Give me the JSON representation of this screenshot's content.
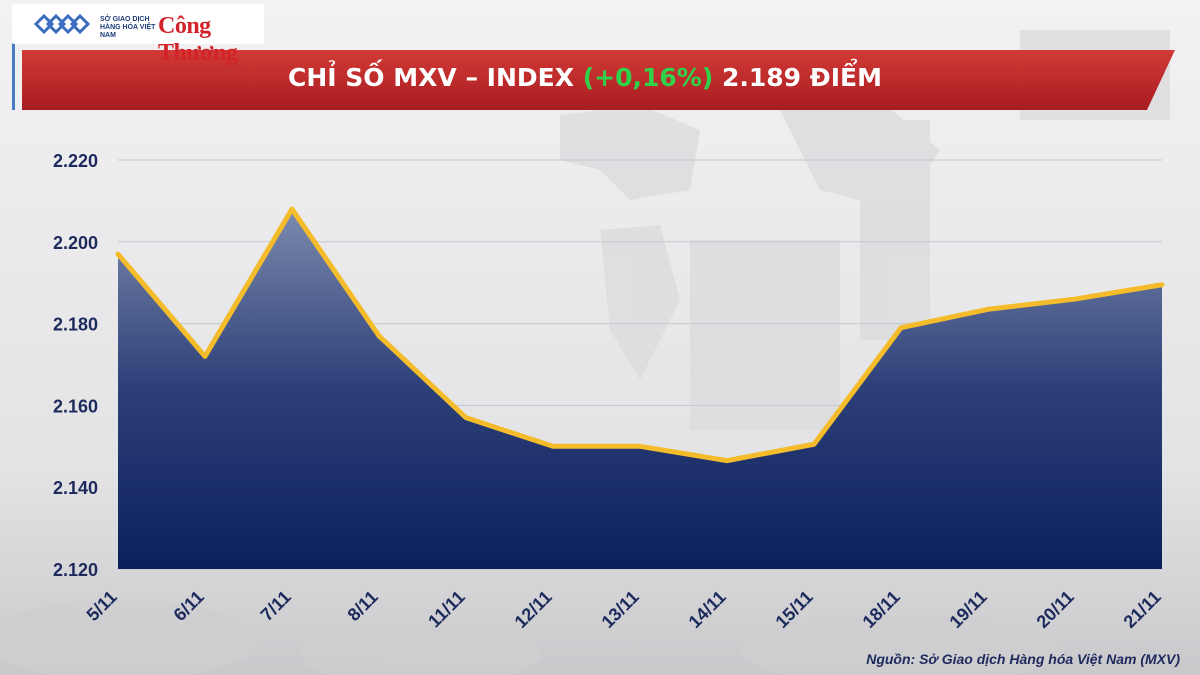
{
  "logos": {
    "mxv_text": "SỞ GIAO DỊCH HÀNG HÓA VIỆT NAM",
    "congthuong_text": "Công Thương"
  },
  "header": {
    "title_prefix": "CHỈ SỐ MXV – INDEX",
    "title_change": "(+0,16%)",
    "title_value": "2.189 ĐIỂM"
  },
  "source": "Nguồn: Sở Giao dịch Hàng hóa Việt Nam (MXV)",
  "colors": {
    "banner": "#c22a2b",
    "line": "#f4bc2a",
    "area_top": "#7b8aad",
    "area_bottom": "#0b1f5c",
    "change_text": "#2fd24b",
    "axis_text": "#1d2a5c"
  },
  "chart_data": {
    "type": "area",
    "title": "CHỈ SỐ MXV – INDEX (+0,16%) 2.189 ĐIỂM",
    "categories": [
      "5/11",
      "6/11",
      "7/11",
      "8/11",
      "11/11",
      "12/11",
      "13/11",
      "14/11",
      "15/11",
      "18/11",
      "19/11",
      "20/11",
      "21/11"
    ],
    "series": [
      {
        "values": [
          2197,
          2172,
          2208,
          2177,
          2157,
          2150,
          2150,
          2146.5,
          2150.5,
          2179,
          2183.5,
          2186,
          2189.5
        ]
      }
    ],
    "ylim": [
      2120,
      2220
    ],
    "yticks": [
      2120,
      2140,
      2160,
      2180,
      2200,
      2220
    ],
    "ytick_labels": [
      "2.120",
      "2.140",
      "2.160",
      "2.180",
      "2.200",
      "2.220"
    ],
    "grid": true
  }
}
